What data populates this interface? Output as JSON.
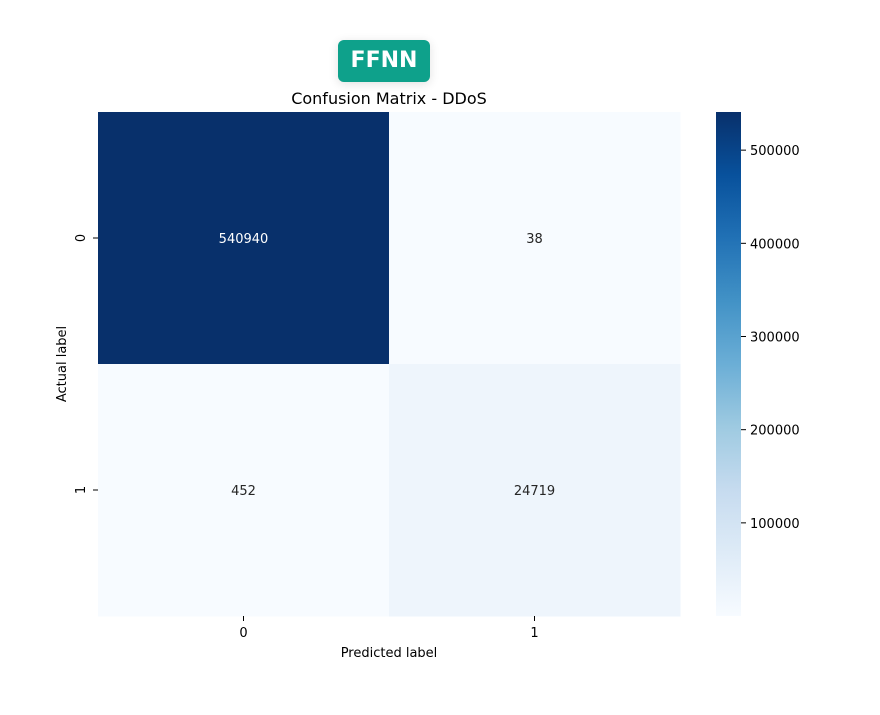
{
  "badge": {
    "label": "FFNN",
    "color": "#0ea18b"
  },
  "chart_data": {
    "type": "heatmap",
    "title": "Confusion Matrix - DDoS",
    "xlabel": "Predicted label",
    "ylabel": "Actual label",
    "x_categories": [
      "0",
      "1"
    ],
    "y_categories": [
      "0",
      "1"
    ],
    "values": [
      [
        540940,
        38
      ],
      [
        452,
        24719
      ]
    ],
    "colormap": "Blues",
    "colorbar": {
      "min": 38,
      "max": 540940,
      "ticks": [
        100000,
        200000,
        300000,
        400000,
        500000
      ],
      "tick_labels": [
        "100000",
        "200000",
        "300000",
        "400000",
        "500000"
      ]
    },
    "grid": false
  }
}
